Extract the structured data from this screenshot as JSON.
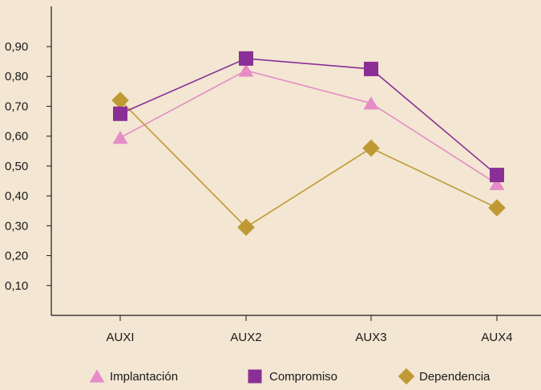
{
  "chart_data": {
    "type": "line",
    "title": "",
    "xlabel": "",
    "ylabel": "",
    "categories": [
      "AUXI",
      "AUX2",
      "AUX3",
      "AUX4"
    ],
    "ylim": [
      0,
      0.9
    ],
    "yticks": [
      "0,10",
      "0,20",
      "0,30",
      "0,40",
      "0,50",
      "0,60",
      "0,70",
      "0,80",
      "0,90"
    ],
    "grid": false,
    "legend_position": "bottom",
    "series": [
      {
        "name": "Implantación",
        "marker": "triangle",
        "color": "#e58cc6",
        "values": [
          0.595,
          0.82,
          0.71,
          0.44
        ]
      },
      {
        "name": "Compromiso",
        "marker": "square",
        "color": "#8a2f96",
        "values": [
          0.675,
          0.86,
          0.825,
          0.47
        ]
      },
      {
        "name": "Dependencia",
        "marker": "diamond",
        "color": "#bf9a34",
        "values": [
          0.72,
          0.295,
          0.56,
          0.36
        ]
      }
    ]
  }
}
